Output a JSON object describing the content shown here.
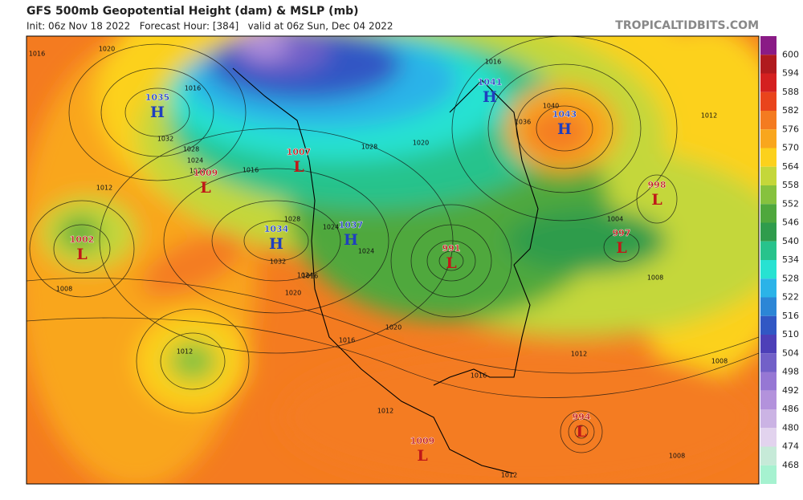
{
  "header": {
    "title": "GFS 500mb Geopotential Height (dam) & MSLP (mb)",
    "subtitle": "Init: 06z Nov 18 2022   Forecast Hour: [384]   valid at 06z Sun, Dec 04 2022",
    "source": "TROPICALTIDBITS.COM"
  },
  "colorbar": {
    "levels": [
      600,
      594,
      588,
      582,
      576,
      570,
      564,
      558,
      552,
      546,
      540,
      534,
      528,
      522,
      516,
      510,
      504,
      498,
      492,
      486,
      480,
      474,
      468
    ],
    "colors": [
      "#b01a1e",
      "#d42020",
      "#e9441c",
      "#f47b20",
      "#f9a61d",
      "#fcd11c",
      "#c4d73a",
      "#86c23e",
      "#4fa83d",
      "#2f9c4c",
      "#27c38c",
      "#27e2d2",
      "#2bb3e8",
      "#2c86d6",
      "#3157c4",
      "#4d3fb8",
      "#7260c8",
      "#9677d4",
      "#b392dc",
      "#cbb3e4",
      "#e2d3ee",
      "#c6ead8",
      "#a6f2d0"
    ]
  },
  "centers": [
    {
      "letter": "H",
      "value": "1035"
    },
    {
      "letter": "L",
      "value": "1009"
    },
    {
      "letter": "L",
      "value": "1007"
    },
    {
      "letter": "L",
      "value": "1002"
    },
    {
      "letter": "H",
      "value": "1034"
    },
    {
      "letter": "H",
      "value": "1037"
    },
    {
      "letter": "H",
      "value": "1043"
    },
    {
      "letter": "H",
      "value": "1041"
    },
    {
      "letter": "L",
      "value": "991"
    },
    {
      "letter": "L",
      "value": "998"
    },
    {
      "letter": "L",
      "value": "997"
    },
    {
      "letter": "L",
      "value": "1009"
    },
    {
      "letter": "L",
      "value": "994"
    }
  ],
  "isobar_labels": [
    "1016",
    "1020",
    "1016",
    "1032",
    "1028",
    "1024",
    "1020",
    "1016",
    "1012",
    "1008",
    "1028",
    "1032",
    "1024",
    "1020",
    "1016",
    "1012",
    "1040",
    "1036",
    "1016",
    "1012",
    "1004",
    "1008",
    "1012",
    "1016",
    "1020",
    "1012",
    "1008",
    "1008",
    "1012",
    "1016",
    "1024",
    "1028",
    "1020",
    "1024"
  ]
}
